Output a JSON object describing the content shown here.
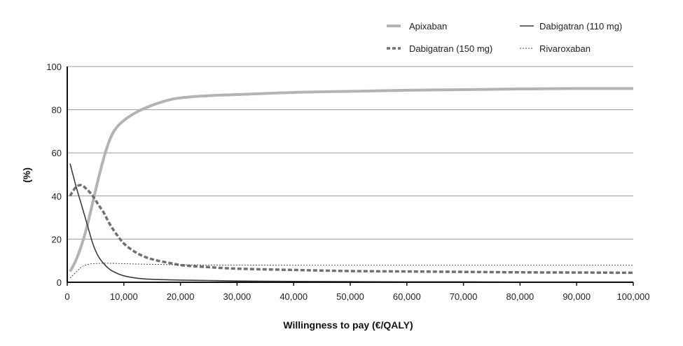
{
  "chart_data": {
    "type": "line",
    "title": "",
    "xlabel": "Willingness to pay (€/QALY)",
    "ylabel": "(%)",
    "xlim": [
      0,
      100000
    ],
    "ylim": [
      0,
      100
    ],
    "x_ticks": [
      0,
      10000,
      20000,
      30000,
      40000,
      50000,
      60000,
      70000,
      80000,
      90000,
      100000
    ],
    "x_tick_labels": [
      "0",
      "10,000",
      "20,000",
      "30,000",
      "40,000",
      "50,000",
      "60,000",
      "70,000",
      "80,000",
      "90,000",
      "100,000"
    ],
    "y_ticks": [
      0,
      20,
      40,
      60,
      80,
      100
    ],
    "y_tick_labels": [
      "0",
      "20",
      "40",
      "60",
      "80",
      "100"
    ],
    "grid": "horizontal",
    "legend_position": "top-right",
    "series": [
      {
        "name": "Apixaban",
        "style": "thick-solid",
        "color": "#b3b3b3",
        "x": [
          500,
          1500,
          2500,
          3500,
          4500,
          5500,
          6500,
          7500,
          8500,
          10000,
          12000,
          14000,
          16000,
          18000,
          20000,
          25000,
          30000,
          40000,
          50000,
          60000,
          70000,
          80000,
          90000,
          100000
        ],
        "values": [
          5,
          10,
          17,
          26,
          37,
          48,
          58,
          66,
          71,
          75,
          78.5,
          81,
          83,
          84.5,
          85.5,
          86.5,
          87,
          88,
          88.5,
          89,
          89.3,
          89.6,
          89.8,
          89.8
        ]
      },
      {
        "name": "Dabigatran (110 mg)",
        "style": "solid",
        "color": "#3a3a3a",
        "x": [
          500,
          1500,
          2500,
          3500,
          4500,
          5500,
          6500,
          7500,
          8500,
          10000,
          12000,
          14000,
          17000,
          20000,
          25000,
          30000,
          40000,
          50000,
          60000,
          70000,
          80000,
          90000,
          100000
        ],
        "values": [
          55,
          45,
          36,
          27,
          18,
          12,
          8.5,
          6,
          4.5,
          3,
          2,
          1.5,
          1.2,
          1,
          0.8,
          0.6,
          0.4,
          0.3,
          0.2,
          0.2,
          0.1,
          0.1,
          0.1
        ]
      },
      {
        "name": "Dabigatran (150 mg)",
        "style": "dashed",
        "color": "#707070",
        "x": [
          500,
          1500,
          2500,
          3500,
          4500,
          5500,
          6500,
          7500,
          8500,
          10000,
          12000,
          14000,
          16000,
          18000,
          20000,
          22000,
          25000,
          30000,
          40000,
          50000,
          60000,
          70000,
          80000,
          90000,
          100000
        ],
        "values": [
          40,
          44,
          45,
          43,
          40,
          36,
          32,
          27,
          23,
          18,
          14,
          11.5,
          10,
          9,
          8,
          7.5,
          7,
          6.3,
          5.7,
          5.2,
          5,
          4.8,
          4.6,
          4.5,
          4.4
        ]
      },
      {
        "name": "Rivaroxaban",
        "style": "dotted",
        "color": "#444444",
        "x": [
          500,
          1500,
          2500,
          3500,
          4500,
          5500,
          7000,
          10000,
          15000,
          20000,
          25000,
          30000,
          40000,
          50000,
          60000,
          70000,
          80000,
          90000,
          100000
        ],
        "values": [
          2,
          4.5,
          7,
          8.2,
          8.6,
          8.7,
          8.8,
          8.6,
          8.3,
          8.1,
          8,
          8,
          7.9,
          7.9,
          7.9,
          7.9,
          7.9,
          7.9,
          7.9
        ]
      }
    ]
  }
}
